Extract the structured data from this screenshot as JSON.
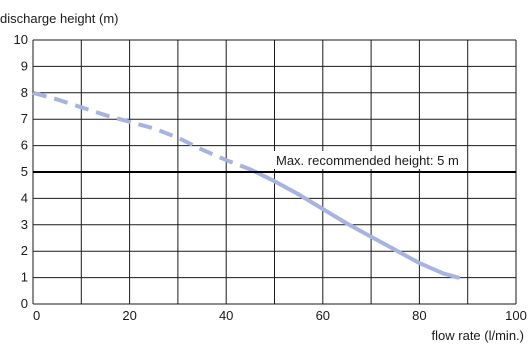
{
  "chart_data": {
    "type": "line",
    "ylabel": "discharge height (m)",
    "xlabel": "flow rate  (l/min.)",
    "xlim": [
      0,
      100
    ],
    "ylim": [
      0,
      10
    ],
    "x_ticks": [
      "0",
      "20",
      "40",
      "60",
      "80",
      "100"
    ],
    "y_ticks": [
      "0",
      "1",
      "2",
      "3",
      "4",
      "5",
      "6",
      "7",
      "8",
      "9",
      "10"
    ],
    "grid": true,
    "series": [
      {
        "color": "#a7b3e0",
        "style": "dashed",
        "x": [
          0,
          5,
          10,
          15,
          20,
          25,
          30,
          35,
          40,
          45
        ],
        "y": [
          8.0,
          7.75,
          7.45,
          7.15,
          6.9,
          6.65,
          6.3,
          5.85,
          5.45,
          5.1
        ]
      },
      {
        "color": "#a7b3e0",
        "style": "solid",
        "x": [
          45,
          50,
          55,
          60,
          65,
          70,
          75,
          80,
          85,
          88
        ],
        "y": [
          5.1,
          4.65,
          4.15,
          3.6,
          3.05,
          2.55,
          2.05,
          1.55,
          1.15,
          1.0
        ]
      }
    ],
    "reference_line": {
      "y": 5,
      "color": "#000000",
      "label": "Max. recommended height: 5 m"
    }
  }
}
